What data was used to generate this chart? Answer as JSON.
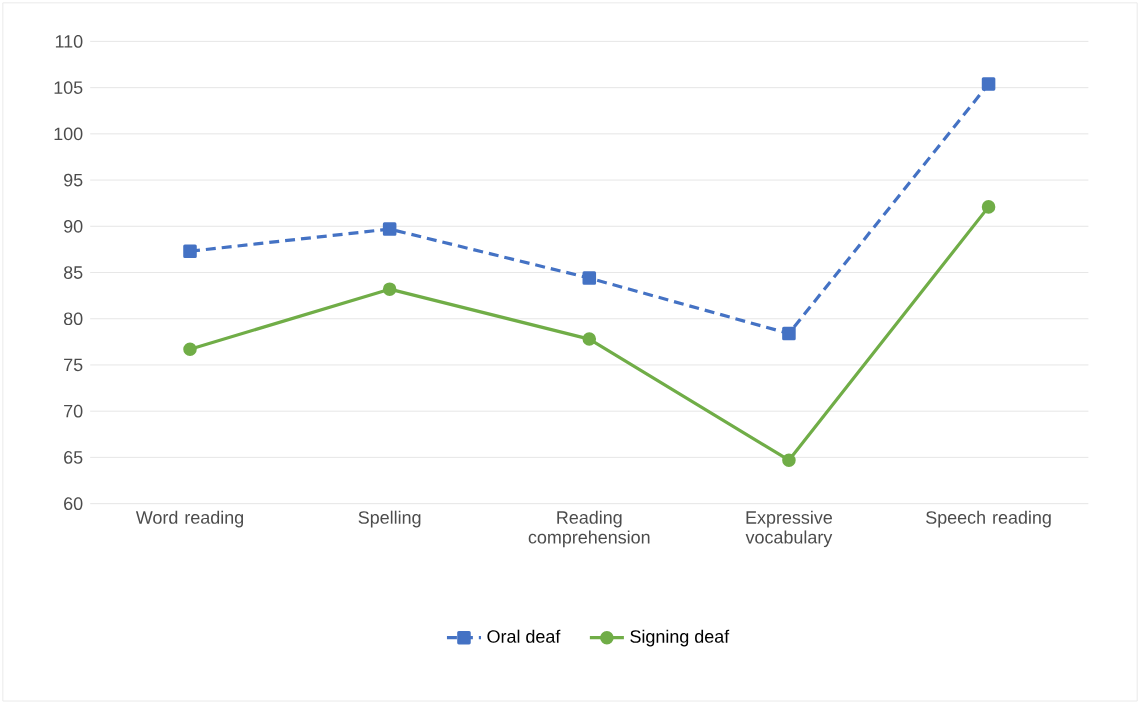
{
  "chart_data": {
    "type": "line",
    "categories": [
      "Word reading",
      "Spelling",
      "Reading comprehension",
      "Expressive vocabulary",
      "Speech reading"
    ],
    "series": [
      {
        "name": "Oral deaf",
        "color": "#4472c4",
        "line_style": "dashed",
        "marker": "square",
        "values": [
          87.3,
          89.7,
          84.4,
          78.4,
          105.4
        ]
      },
      {
        "name": "Signing deaf",
        "color": "#70ad47",
        "line_style": "solid",
        "marker": "circle",
        "values": [
          76.7,
          83.2,
          77.8,
          64.7,
          92.1
        ]
      }
    ],
    "ylim": [
      60,
      110
    ],
    "yticks": [
      60,
      65,
      70,
      75,
      80,
      85,
      90,
      95,
      100,
      105,
      110
    ],
    "grid": "y",
    "legend": "bottom"
  }
}
